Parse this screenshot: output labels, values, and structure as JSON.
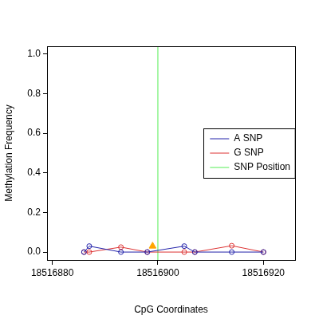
{
  "chart_data": {
    "type": "line",
    "x_label": "CpG Coordinates",
    "y_label": "Methylation Frequency",
    "xlim": [
      18516879,
      18516926
    ],
    "xticks": [
      18516880,
      18516900,
      18516920
    ],
    "ylim": [
      -0.04,
      1.04
    ],
    "yticks": [
      {
        "value": 0,
        "label": "0.0"
      },
      {
        "value": 0.2,
        "label": "0.2"
      },
      {
        "value": 0.4,
        "label": "0.4"
      },
      {
        "value": 0.6,
        "label": "0.6"
      },
      {
        "value": 0.8,
        "label": "0.8"
      },
      {
        "value": 1,
        "label": "1.0"
      }
    ],
    "grid": false,
    "legend": "right",
    "series": [
      {
        "name": "A SNP",
        "color": "#2222aa",
        "marker": "circle",
        "line_style": "solid",
        "x": [
          18516886,
          18516887,
          18516893,
          18516898,
          18516905,
          18516907,
          18516914,
          18516920
        ],
        "values": [
          0,
          0.03,
          0,
          0,
          0.03,
          0,
          0,
          0
        ]
      },
      {
        "name": "G SNP",
        "color": "#dd3333",
        "marker": "circle",
        "line_style": "solid",
        "x": [
          18516886,
          18516887,
          18516893,
          18516898,
          18516905,
          18516907,
          18516914,
          18516920
        ],
        "values": [
          0,
          0,
          0.025,
          0,
          0,
          0,
          0.032,
          0
        ]
      },
      {
        "name": "SNP Position",
        "color": "#55ee55",
        "marker": "none",
        "line_style": "solid",
        "x": [
          18516900,
          18516900
        ],
        "values": [
          -0.04,
          1.04
        ]
      },
      {
        "color": "#ffa500",
        "marker": "triangle",
        "line_style": "none",
        "x": [
          18516899
        ],
        "values": [
          0.03
        ]
      }
    ]
  }
}
